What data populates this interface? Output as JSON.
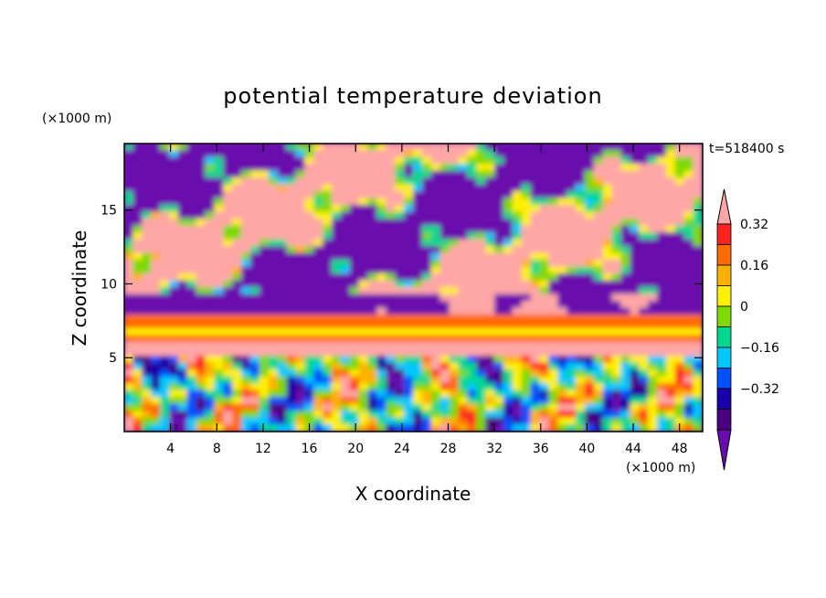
{
  "chart_data": {
    "type": "heatmap",
    "title": "potential temperature deviation",
    "xlabel": "X coordinate",
    "ylabel": "Z coordinate",
    "x_unit": "(×1000 m)",
    "y_unit": "(×1000 m)",
    "time_label": "t=518400 s",
    "xlim": [
      0,
      50
    ],
    "ylim": [
      0,
      19.5
    ],
    "x_ticks": [
      4,
      8,
      12,
      16,
      20,
      24,
      28,
      32,
      36,
      40,
      44,
      48
    ],
    "x_tick_labels": [
      "4",
      "8",
      "12",
      "16",
      "20",
      "24",
      "28",
      "32",
      "36",
      "40",
      "44",
      "48"
    ],
    "y_ticks": [
      5,
      10,
      15
    ],
    "y_tick_labels": [
      "5",
      "10",
      "15"
    ],
    "colorbar": {
      "levels": [
        -0.4,
        -0.32,
        -0.24,
        -0.16,
        -0.08,
        0,
        0.08,
        0.16,
        0.24,
        0.32,
        0.4
      ],
      "labels": [
        "0.32",
        "0.16",
        "0",
        "−0.16",
        "−0.32"
      ],
      "label_values": [
        0.32,
        0.16,
        0,
        -0.16,
        -0.32
      ],
      "colors": [
        "#6a0dad",
        "#4b0082",
        "#1a00a8",
        "#0050ff",
        "#00c8ff",
        "#00d890",
        "#7fd800",
        "#fff000",
        "#ffb000",
        "#ff6a00",
        "#ff2020",
        "#ffa6a6"
      ]
    }
  }
}
